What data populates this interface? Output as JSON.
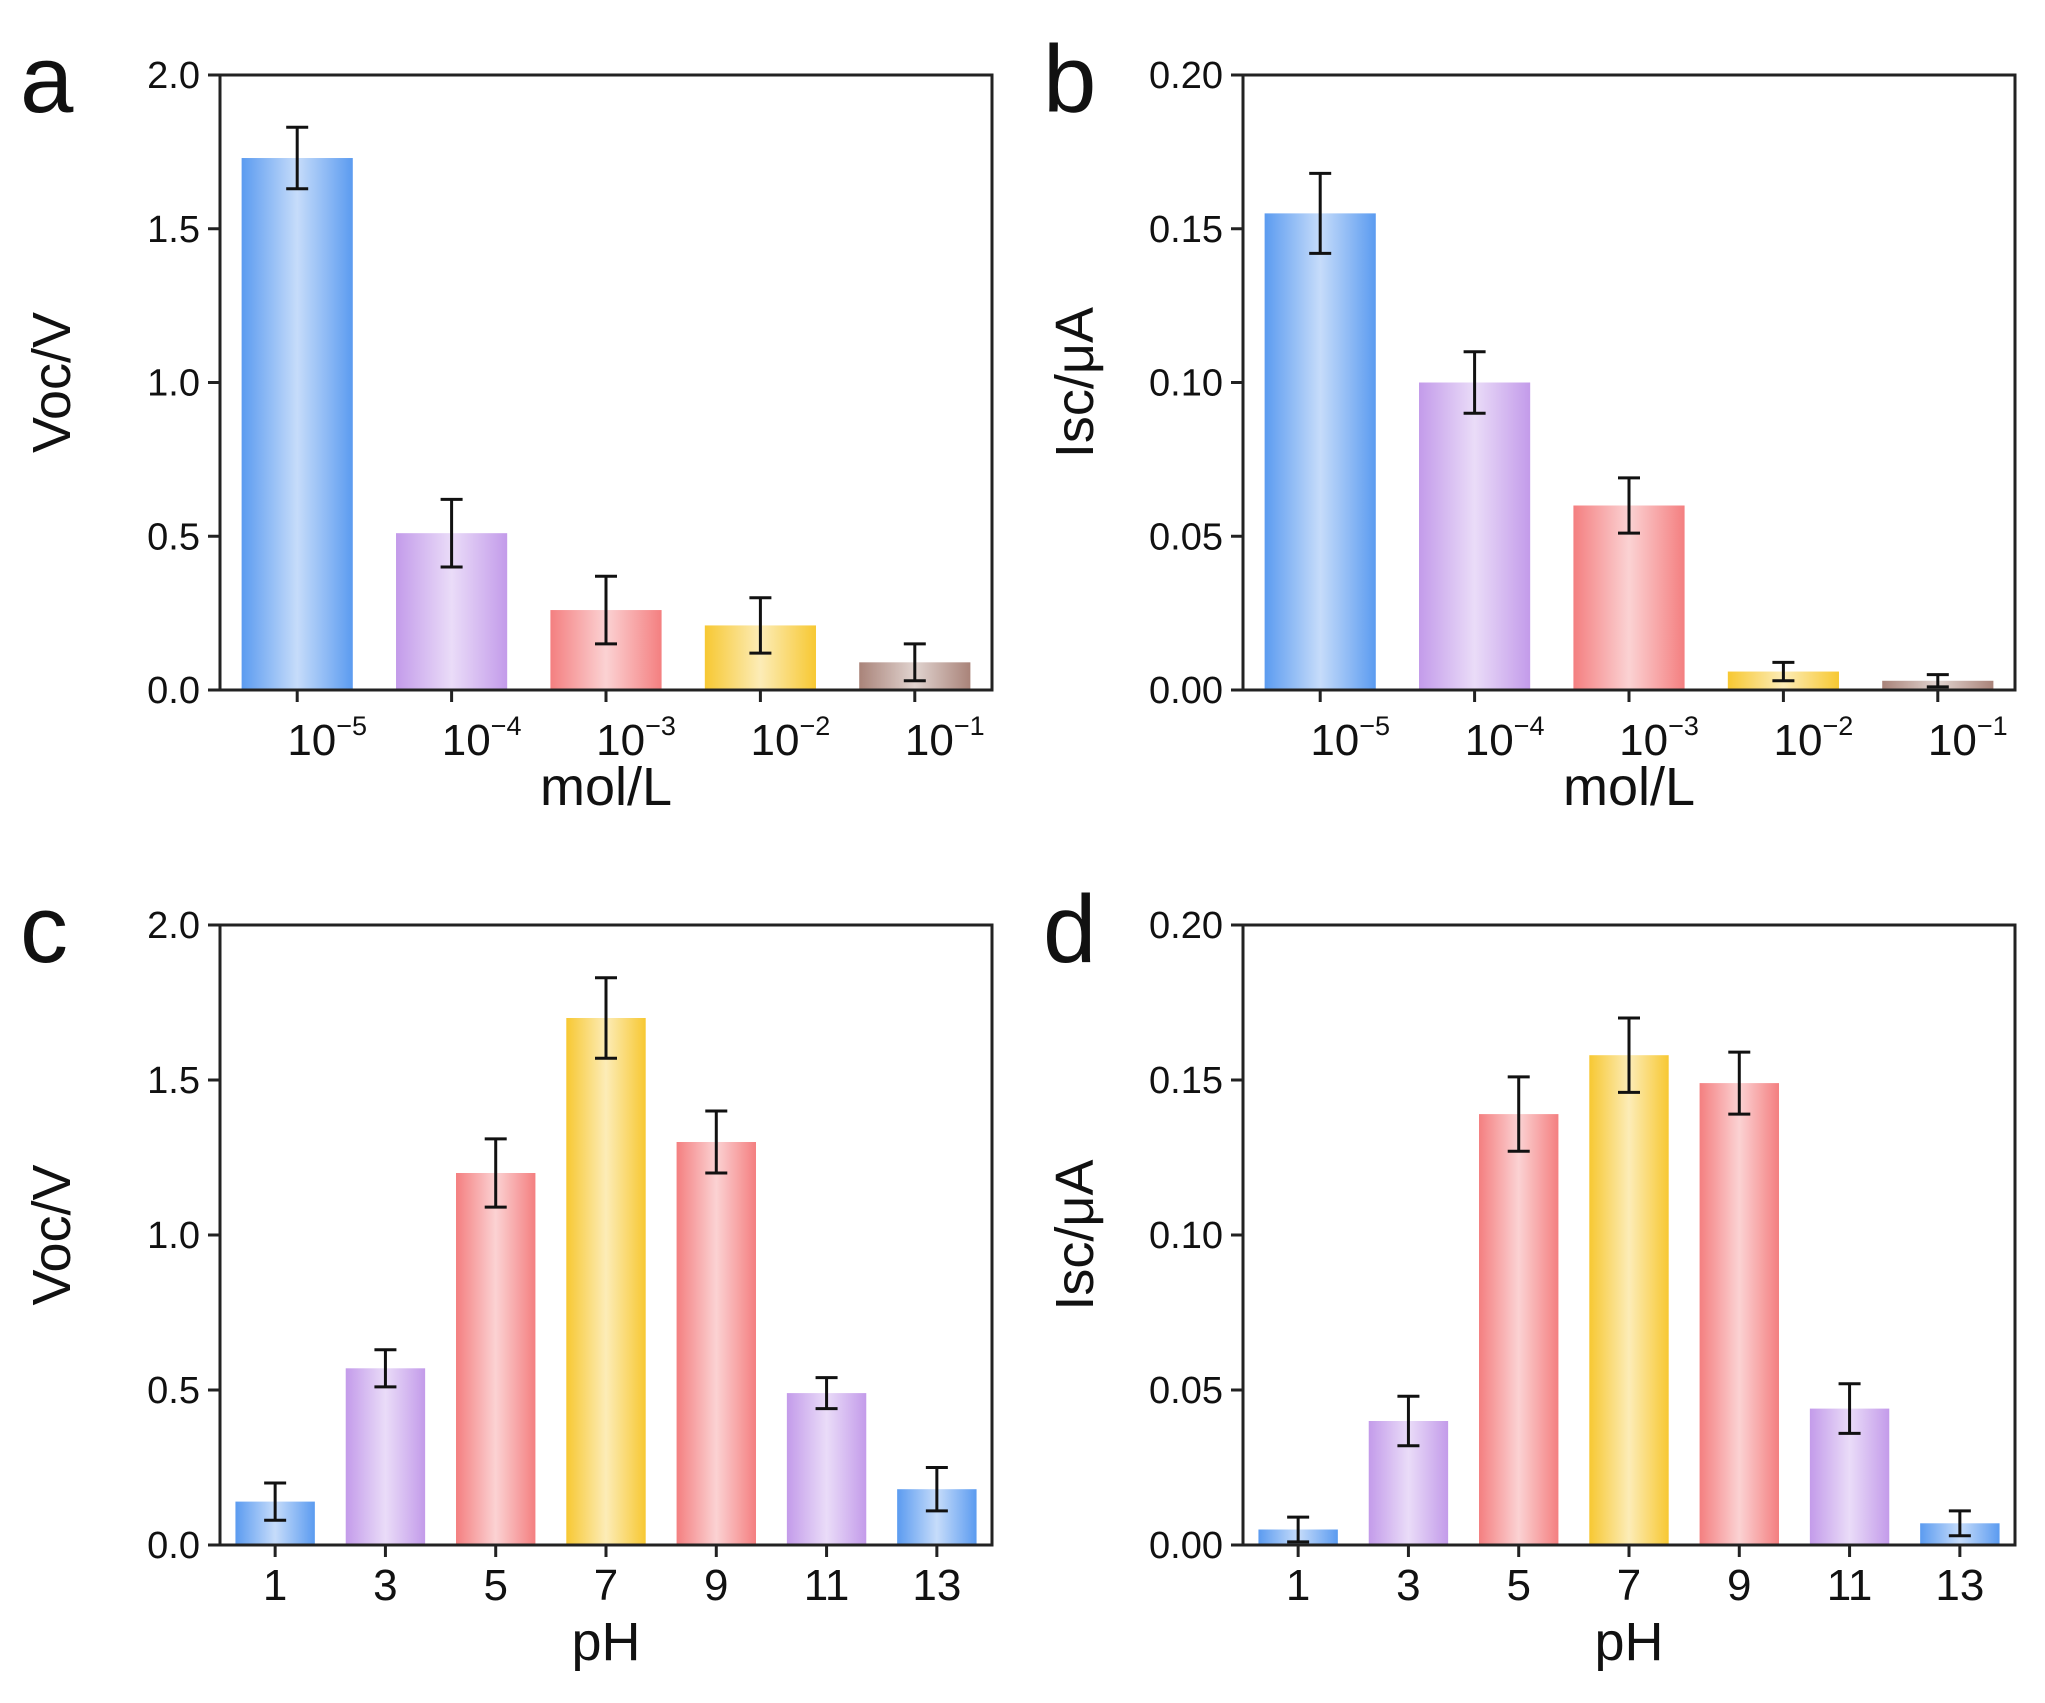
{
  "colors": {
    "blue": "#5b9bf0",
    "purple": "#c39bea",
    "red": "#f47f80",
    "yellow": "#f7c832",
    "brown": "#a98379"
  },
  "chart_data": [
    {
      "panel": "a",
      "type": "bar",
      "categories": [
        {
          "base": "10",
          "exp": "−5"
        },
        {
          "base": "10",
          "exp": "−4"
        },
        {
          "base": "10",
          "exp": "−3"
        },
        {
          "base": "10",
          "exp": "−2"
        },
        {
          "base": "10",
          "exp": "−1"
        }
      ],
      "values": [
        1.73,
        0.51,
        0.26,
        0.21,
        0.09
      ],
      "errors": [
        0.1,
        0.11,
        0.11,
        0.09,
        0.06
      ],
      "bar_colors": [
        "blue",
        "purple",
        "red",
        "yellow",
        "brown"
      ],
      "xlabel": "mol/L",
      "ylabel": "Voc/V",
      "ylim": [
        0,
        2.0
      ],
      "yticks": [
        "0.0",
        "0.5",
        "1.0",
        "1.5",
        "2.0"
      ]
    },
    {
      "panel": "b",
      "type": "bar",
      "categories": [
        {
          "base": "10",
          "exp": "−5"
        },
        {
          "base": "10",
          "exp": "−4"
        },
        {
          "base": "10",
          "exp": "−3"
        },
        {
          "base": "10",
          "exp": "−2"
        },
        {
          "base": "10",
          "exp": "−1"
        }
      ],
      "values": [
        0.155,
        0.1,
        0.06,
        0.006,
        0.003
      ],
      "errors": [
        0.013,
        0.01,
        0.009,
        0.003,
        0.002
      ],
      "bar_colors": [
        "blue",
        "purple",
        "red",
        "yellow",
        "brown"
      ],
      "xlabel": "mol/L",
      "ylabel": "Isc/μA",
      "ylim": [
        0,
        0.2
      ],
      "yticks": [
        "0.00",
        "0.05",
        "0.10",
        "0.15",
        "0.20"
      ]
    },
    {
      "panel": "c",
      "type": "bar",
      "categories": [
        "1",
        "3",
        "5",
        "7",
        "9",
        "11",
        "13"
      ],
      "values": [
        0.14,
        0.57,
        1.2,
        1.7,
        1.3,
        0.49,
        0.18
      ],
      "errors": [
        0.06,
        0.06,
        0.11,
        0.13,
        0.1,
        0.05,
        0.07
      ],
      "bar_colors": [
        "blue",
        "purple",
        "red",
        "yellow",
        "red",
        "purple",
        "blue"
      ],
      "xlabel": "pH",
      "ylabel": "Voc/V",
      "ylim": [
        0,
        2.0
      ],
      "yticks": [
        "0.0",
        "0.5",
        "1.0",
        "1.5",
        "2.0"
      ]
    },
    {
      "panel": "d",
      "type": "bar",
      "categories": [
        "1",
        "3",
        "5",
        "7",
        "9",
        "11",
        "13"
      ],
      "values": [
        0.005,
        0.04,
        0.139,
        0.158,
        0.149,
        0.044,
        0.007
      ],
      "errors": [
        0.004,
        0.008,
        0.012,
        0.012,
        0.01,
        0.008,
        0.004
      ],
      "bar_colors": [
        "blue",
        "purple",
        "red",
        "yellow",
        "red",
        "purple",
        "blue"
      ],
      "xlabel": "pH",
      "ylabel": "Isc/μA",
      "ylim": [
        0,
        0.2
      ],
      "yticks": [
        "0.00",
        "0.05",
        "0.10",
        "0.15",
        "0.20"
      ]
    }
  ]
}
